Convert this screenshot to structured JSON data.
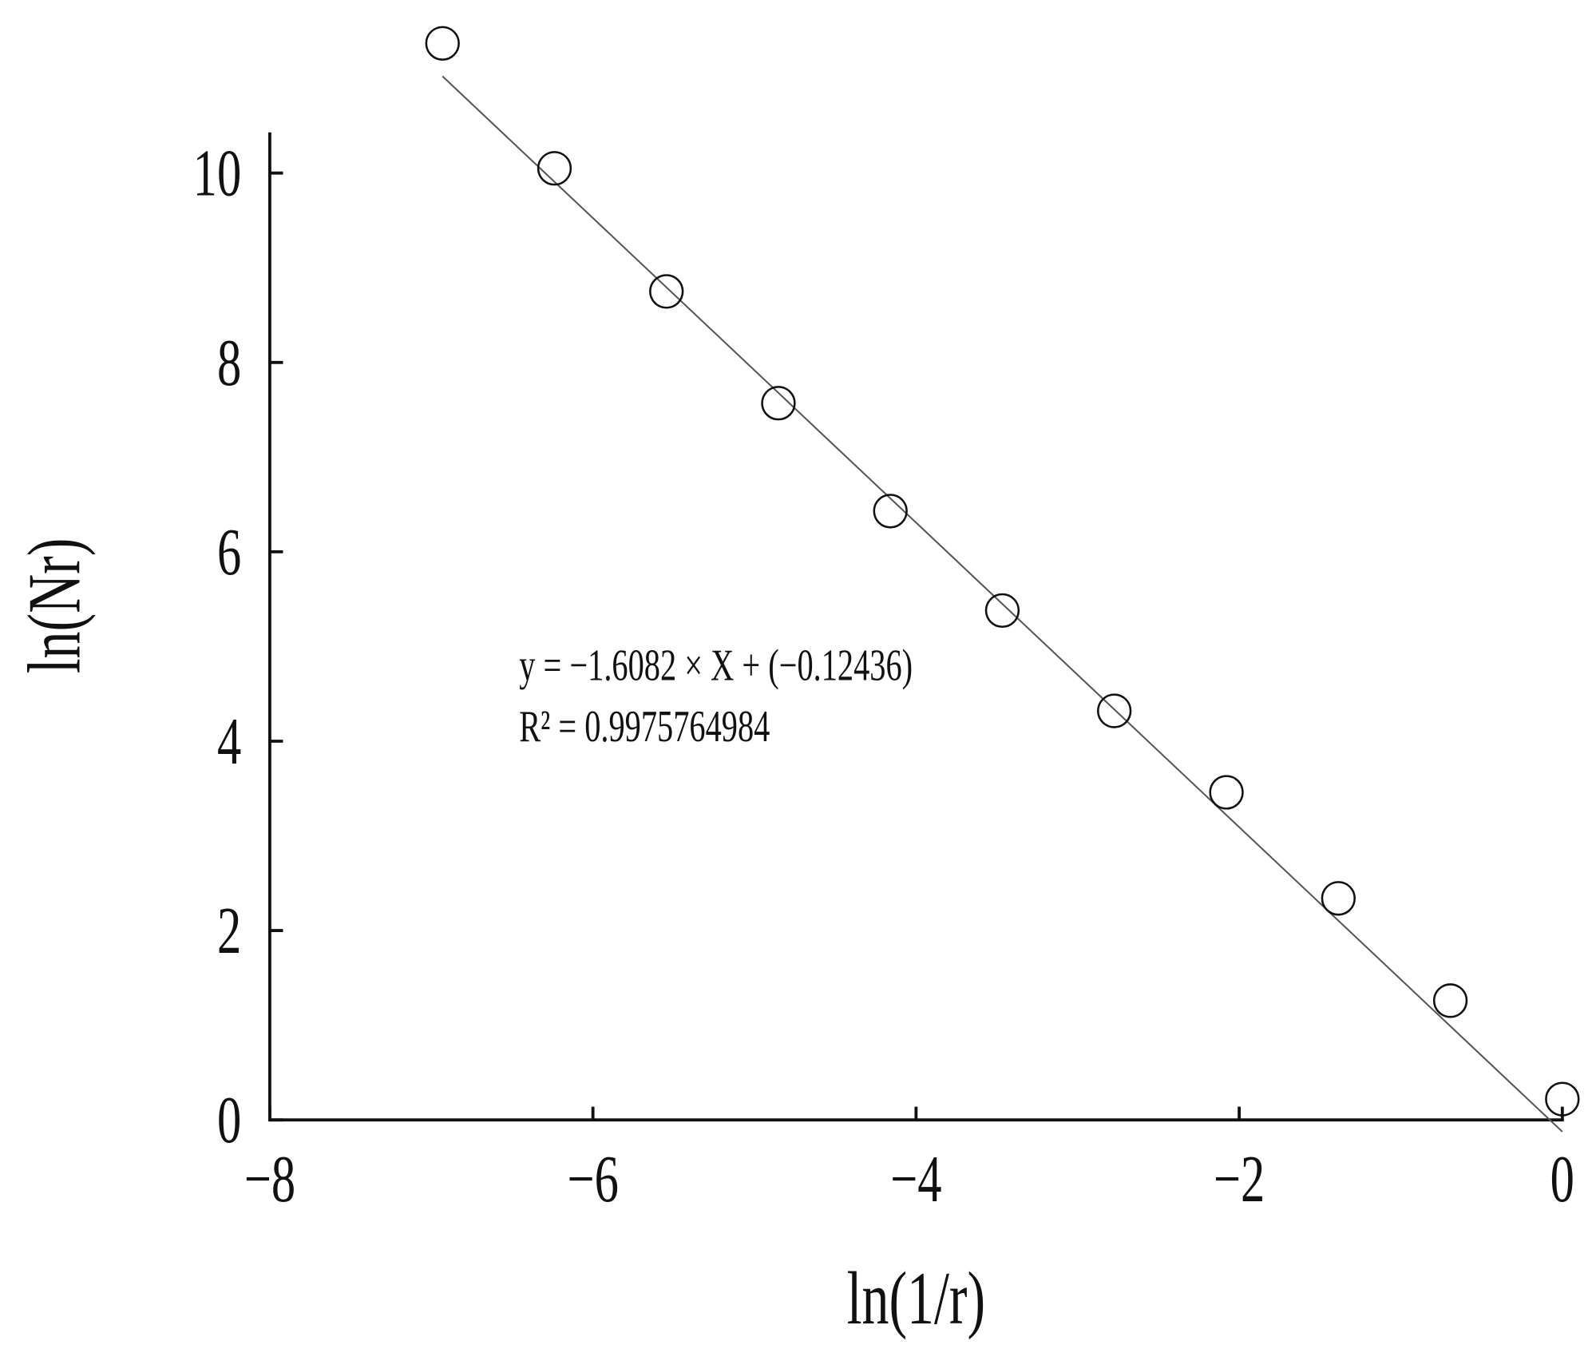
{
  "chart_data": {
    "type": "scatter",
    "x_label": "ln(1/r)",
    "y_label": "ln(Nr)",
    "x": [
      -6.931,
      -6.238,
      -5.545,
      -4.852,
      -4.159,
      -3.466,
      -2.773,
      -2.079,
      -1.386,
      -0.693,
      0
    ],
    "series": [
      {
        "name": "ln(Nr)",
        "color": "#111111",
        "values": [
          11.37,
          10.05,
          8.75,
          7.57,
          6.43,
          5.38,
          4.32,
          3.46,
          2.34,
          1.26,
          0.22
        ]
      }
    ],
    "fit": {
      "slope": -1.6082,
      "intercept": -0.12436,
      "color": "#555555"
    },
    "annotations": [
      "y = −1.6082 × X + (−0.12436)",
      "R² = 0.9975764984"
    ],
    "xlim": [
      -8,
      0
    ],
    "ylim": [
      0,
      10.43
    ],
    "xticks": [
      {
        "value": -8,
        "label": "−8"
      },
      {
        "value": -6,
        "label": "−6"
      },
      {
        "value": -4,
        "label": "−4"
      },
      {
        "value": -2,
        "label": "−2"
      },
      0
    ],
    "yticks": [
      0,
      2,
      4,
      6,
      8,
      10
    ],
    "grid": false
  }
}
